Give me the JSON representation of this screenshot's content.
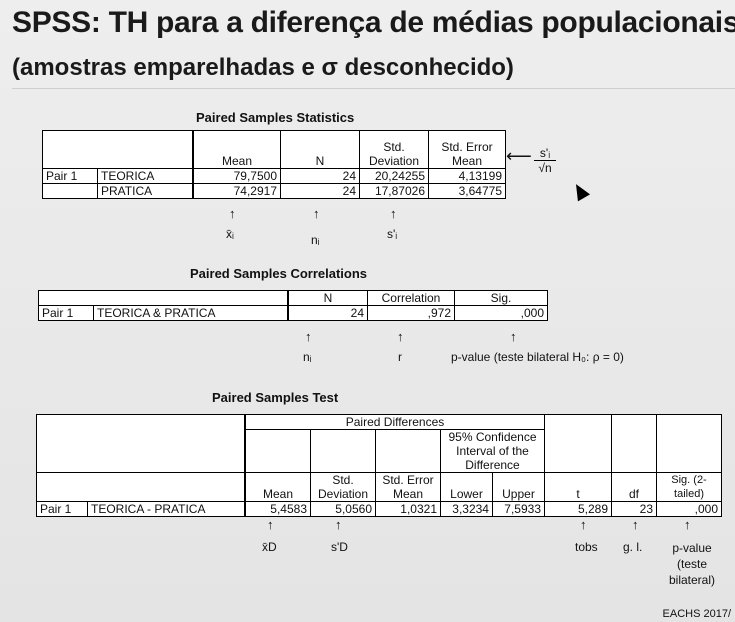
{
  "title": "SPSS: TH para a diferença de médias populacionais",
  "subtitle": "(amostras emparelhadas e σ desconhecido)",
  "stats": {
    "caption": "Paired Samples Statistics",
    "headers": [
      "Mean",
      "N",
      "Std. Deviation",
      "Std. Error Mean"
    ],
    "pair": "Pair 1",
    "rows": [
      {
        "name": "TEORICA",
        "mean": "79,7500",
        "n": "24",
        "sd": "20,24255",
        "se": "4,13199"
      },
      {
        "name": "PRATICA",
        "mean": "74,2917",
        "n": "24",
        "sd": "17,87026",
        "se": "3,64775"
      }
    ],
    "annot_mean": "x̄ᵢ",
    "annot_n": "nᵢ",
    "annot_sd": "s'ᵢ",
    "formula_num": "s'ᵢ",
    "formula_den": "√n"
  },
  "corr": {
    "caption": "Paired Samples Correlations",
    "headers": [
      "N",
      "Correlation",
      "Sig."
    ],
    "pair": "Pair 1",
    "name": "TEORICA & PRATICA",
    "n": "24",
    "correlation": ",972",
    "sig": ",000",
    "annot_n": "nᵢ",
    "annot_r": "r",
    "annot_p": "p-value (teste bilateral H₀: ρ = 0)"
  },
  "test": {
    "caption": "Paired Samples Test",
    "group_header": "Paired Differences",
    "ci_header": "95% Confidence Interval of the Difference",
    "headers": [
      "Mean",
      "Std. Deviation",
      "Std. Error Mean",
      "Lower",
      "Upper",
      "t",
      "df",
      "Sig. (2-tailed)"
    ],
    "pair": "Pair 1",
    "name": "TEORICA - PRATICA",
    "values": [
      "5,4583",
      "5,0560",
      "1,0321",
      "3,3234",
      "7,5933",
      "5,289",
      "23",
      ",000"
    ],
    "annot_mean": "x̄D",
    "annot_sd": "s'D",
    "annot_t": "tobs",
    "annot_df": "g. l.",
    "annot_p": "p-value (teste bilateral)"
  },
  "footer": "EACHS 2017/"
}
